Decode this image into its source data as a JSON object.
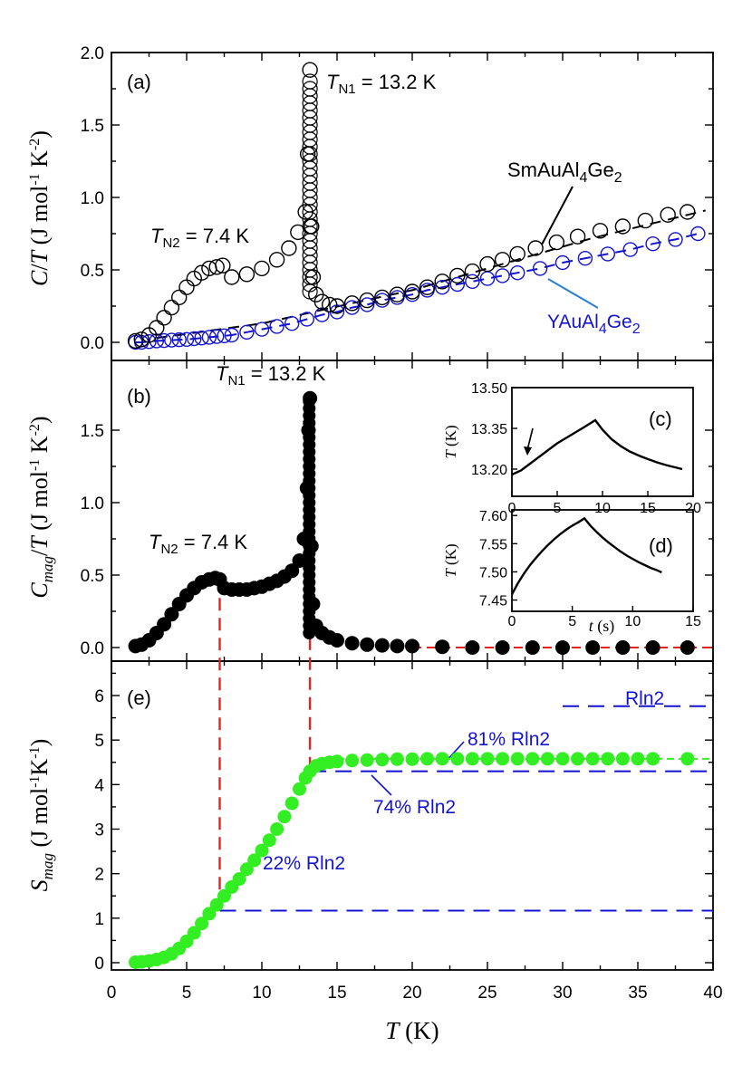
{
  "chart_data": [
    {
      "panel": "(a)",
      "type": "scatter",
      "ylabel": "C/T (J mol-1 K-2)",
      "xlim": [
        0,
        40
      ],
      "ylim": [
        -0.05,
        2.0
      ],
      "yticks": [
        "0.0",
        "0.5",
        "1.0",
        "1.5",
        "2.0"
      ],
      "annotations": [
        "TN1 = 13.2 K",
        "TN2 = 7.4 K"
      ],
      "series": [
        {
          "name": "SmAuAl4Ge2",
          "marker": "open-circle",
          "color": "#000000",
          "x": [
            1.6,
            2.0,
            2.5,
            3.0,
            3.5,
            4.0,
            4.5,
            5.0,
            5.5,
            6.0,
            6.5,
            7.0,
            7.4,
            8,
            9,
            10,
            11,
            11.8,
            12.4,
            12.9,
            13.05,
            13.2,
            13.3,
            13.4,
            13.6,
            14,
            14.5,
            15,
            16,
            17,
            18,
            19,
            20,
            21,
            22,
            23,
            24,
            25,
            26,
            27,
            28.2,
            29.6,
            31,
            32.5,
            34,
            35.5,
            37,
            38.3
          ],
          "y": [
            0.01,
            0.02,
            0.05,
            0.1,
            0.17,
            0.24,
            0.31,
            0.38,
            0.44,
            0.48,
            0.51,
            0.52,
            0.53,
            0.45,
            0.47,
            0.51,
            0.57,
            0.65,
            0.76,
            0.9,
            1.3,
            1.88,
            0.8,
            0.45,
            0.33,
            0.28,
            0.26,
            0.25,
            0.27,
            0.29,
            0.31,
            0.33,
            0.35,
            0.38,
            0.42,
            0.46,
            0.49,
            0.54,
            0.57,
            0.61,
            0.65,
            0.69,
            0.73,
            0.77,
            0.8,
            0.84,
            0.88,
            0.9
          ]
        },
        {
          "name": "YAuAl4Ge2",
          "marker": "open-circle",
          "color": "#1414d0",
          "x": [
            1.6,
            2,
            2.5,
            3,
            3.5,
            4,
            4.5,
            5,
            5.5,
            6,
            6.5,
            7,
            7.5,
            8,
            9,
            10,
            11,
            12,
            13,
            14,
            15,
            16,
            17,
            18,
            19,
            20,
            21,
            22,
            23,
            24,
            25,
            26,
            27,
            28.5,
            30,
            31.5,
            33,
            34.5,
            36,
            37.5,
            39
          ],
          "y": [
            0.0,
            0.0,
            0.005,
            0.01,
            0.012,
            0.015,
            0.018,
            0.02,
            0.025,
            0.03,
            0.035,
            0.04,
            0.045,
            0.05,
            0.07,
            0.09,
            0.11,
            0.13,
            0.16,
            0.19,
            0.21,
            0.24,
            0.26,
            0.29,
            0.31,
            0.33,
            0.36,
            0.38,
            0.4,
            0.42,
            0.44,
            0.46,
            0.48,
            0.51,
            0.55,
            0.58,
            0.61,
            0.64,
            0.68,
            0.71,
            0.75
          ]
        }
      ]
    },
    {
      "panel": "(b)",
      "type": "scatter",
      "ylabel": "Cmag/T (J mol-1 K-2)",
      "xlim": [
        0,
        40
      ],
      "ylim": [
        -0.05,
        1.8
      ],
      "yticks": [
        "0.0",
        "0.5",
        "1.0",
        "1.5"
      ],
      "annotations": [
        "TN1 = 13.2 K",
        "TN2 = 7.4 K"
      ],
      "series": [
        {
          "name": "Cmag/T",
          "marker": "filled-circle",
          "color": "#000000",
          "x": [
            1.6,
            2,
            2.5,
            3,
            3.5,
            4,
            4.5,
            5,
            5.5,
            6,
            6.5,
            6.9,
            7.2,
            7.5,
            8,
            8.5,
            9,
            9.5,
            10,
            10.5,
            11,
            11.5,
            12,
            12.5,
            12.8,
            13,
            13.1,
            13.2,
            13.3,
            13.4,
            13.6,
            14,
            14.5,
            15,
            16,
            17,
            18,
            19,
            20,
            22,
            24,
            26,
            28,
            30,
            32,
            34,
            36,
            38.3
          ],
          "y": [
            0.01,
            0.02,
            0.05,
            0.1,
            0.16,
            0.23,
            0.3,
            0.36,
            0.41,
            0.45,
            0.47,
            0.48,
            0.47,
            0.41,
            0.4,
            0.4,
            0.4,
            0.41,
            0.42,
            0.44,
            0.46,
            0.49,
            0.53,
            0.6,
            0.75,
            1.1,
            1.5,
            1.72,
            0.7,
            0.3,
            0.15,
            0.1,
            0.07,
            0.05,
            0.03,
            0.02,
            0.015,
            0.01,
            0.01,
            0.005,
            0.0,
            0.0,
            0.0,
            0.0,
            0.0,
            0.0,
            0.0,
            0.0
          ]
        }
      ]
    },
    {
      "panel": "(c)",
      "type": "line",
      "xlim": [
        0,
        20
      ],
      "ylim": [
        13.1,
        13.5
      ],
      "xticks": [
        "0",
        "5",
        "10",
        "15",
        "20"
      ],
      "yticks": [
        "13.20",
        "13.35",
        "13.50"
      ],
      "ylabel": "T (K)",
      "series": [
        {
          "name": "",
          "x": [
            0,
            1,
            2,
            3,
            4,
            5,
            6,
            7,
            8,
            9.2,
            10,
            11,
            12,
            13,
            14,
            15,
            16,
            17,
            18.8
          ],
          "y": [
            13.18,
            13.195,
            13.22,
            13.245,
            13.27,
            13.295,
            13.315,
            13.335,
            13.355,
            13.38,
            13.345,
            13.31,
            13.285,
            13.265,
            13.25,
            13.237,
            13.225,
            13.215,
            13.2
          ]
        }
      ]
    },
    {
      "panel": "(d)",
      "type": "line",
      "xlim": [
        0,
        15
      ],
      "ylim": [
        7.43,
        7.6
      ],
      "xticks": [
        "0",
        "5",
        "10",
        "15"
      ],
      "yticks": [
        "7.45",
        "7.50",
        "7.55",
        "7.60"
      ],
      "xlabel": "t (s)",
      "ylabel": "T (K)",
      "series": [
        {
          "name": "",
          "x": [
            0,
            0.5,
            1,
            1.5,
            2,
            2.5,
            3,
            3.5,
            4,
            4.5,
            5,
            5.5,
            6,
            6.5,
            7,
            7.5,
            8,
            8.5,
            9,
            9.5,
            10,
            10.5,
            11,
            11.5,
            12,
            12.4
          ],
          "y": [
            7.46,
            7.48,
            7.497,
            7.512,
            7.525,
            7.537,
            7.548,
            7.558,
            7.567,
            7.575,
            7.582,
            7.588,
            7.595,
            7.582,
            7.571,
            7.561,
            7.552,
            7.544,
            7.536,
            7.529,
            7.523,
            7.517,
            7.512,
            7.507,
            7.503,
            7.499
          ]
        }
      ]
    },
    {
      "panel": "(e)",
      "type": "scatter",
      "ylabel": "Smag (J mol-1K-1)",
      "xlabel": "T (K)",
      "xlim": [
        0,
        40
      ],
      "ylim": [
        -0.1,
        6.8
      ],
      "yticks": [
        "0",
        "1",
        "2",
        "3",
        "4",
        "5",
        "6"
      ],
      "xticks": [
        "0",
        "5",
        "10",
        "15",
        "20",
        "25",
        "30",
        "35",
        "40"
      ],
      "reference_levels": [
        {
          "label": "Rln2",
          "value": 5.76
        },
        {
          "label": "81% Rln2",
          "value": 4.6
        },
        {
          "label": "74% Rln2",
          "value": 4.3
        },
        {
          "label": "22% Rln2",
          "value": 1.17
        }
      ],
      "series": [
        {
          "name": "Smag",
          "marker": "filled-circle",
          "color": "#33ee22",
          "x": [
            1.6,
            2,
            2.5,
            3,
            3.5,
            4,
            4.5,
            5,
            5.5,
            6,
            6.5,
            7,
            7.5,
            8,
            8.5,
            9,
            9.5,
            10,
            10.5,
            11,
            11.5,
            12,
            12.5,
            12.9,
            13.2,
            13.6,
            14,
            14.5,
            15,
            16,
            17,
            18,
            19,
            20,
            21,
            22,
            23,
            24,
            25,
            26,
            27,
            28,
            29,
            30,
            31,
            32,
            33,
            34,
            35,
            36,
            38.3
          ],
          "y": [
            0.01,
            0.02,
            0.04,
            0.07,
            0.12,
            0.2,
            0.32,
            0.48,
            0.67,
            0.88,
            1.1,
            1.3,
            1.5,
            1.7,
            1.88,
            2.1,
            2.3,
            2.52,
            2.75,
            3.0,
            3.28,
            3.58,
            3.9,
            4.15,
            4.3,
            4.42,
            4.47,
            4.5,
            4.52,
            4.54,
            4.55,
            4.56,
            4.57,
            4.57,
            4.58,
            4.58,
            4.58,
            4.58,
            4.58,
            4.58,
            4.58,
            4.58,
            4.58,
            4.58,
            4.58,
            4.58,
            4.58,
            4.58,
            4.58,
            4.58,
            4.58
          ]
        }
      ]
    }
  ],
  "labels": {
    "panel_a": "(a)",
    "panel_b": "(b)",
    "panel_c": "(c)",
    "panel_d": "(d)",
    "panel_e": "(e)",
    "tn1_a_val": " = 13.2 K",
    "tn2_a_val": " = 7.4 K",
    "tn1_b_val": " = 13.2 K",
    "tn2_b_val": " = 7.4 K",
    "rln2": "Rln2",
    "p81": "81% Rln2",
    "p74": "74% Rln2",
    "p22": "22% Rln2"
  },
  "colors": {
    "black": "#000000",
    "blue": "#1414d0",
    "red": "#e8211e",
    "green": "#33ee22",
    "legend_line_blue": "#2a7fd4"
  }
}
